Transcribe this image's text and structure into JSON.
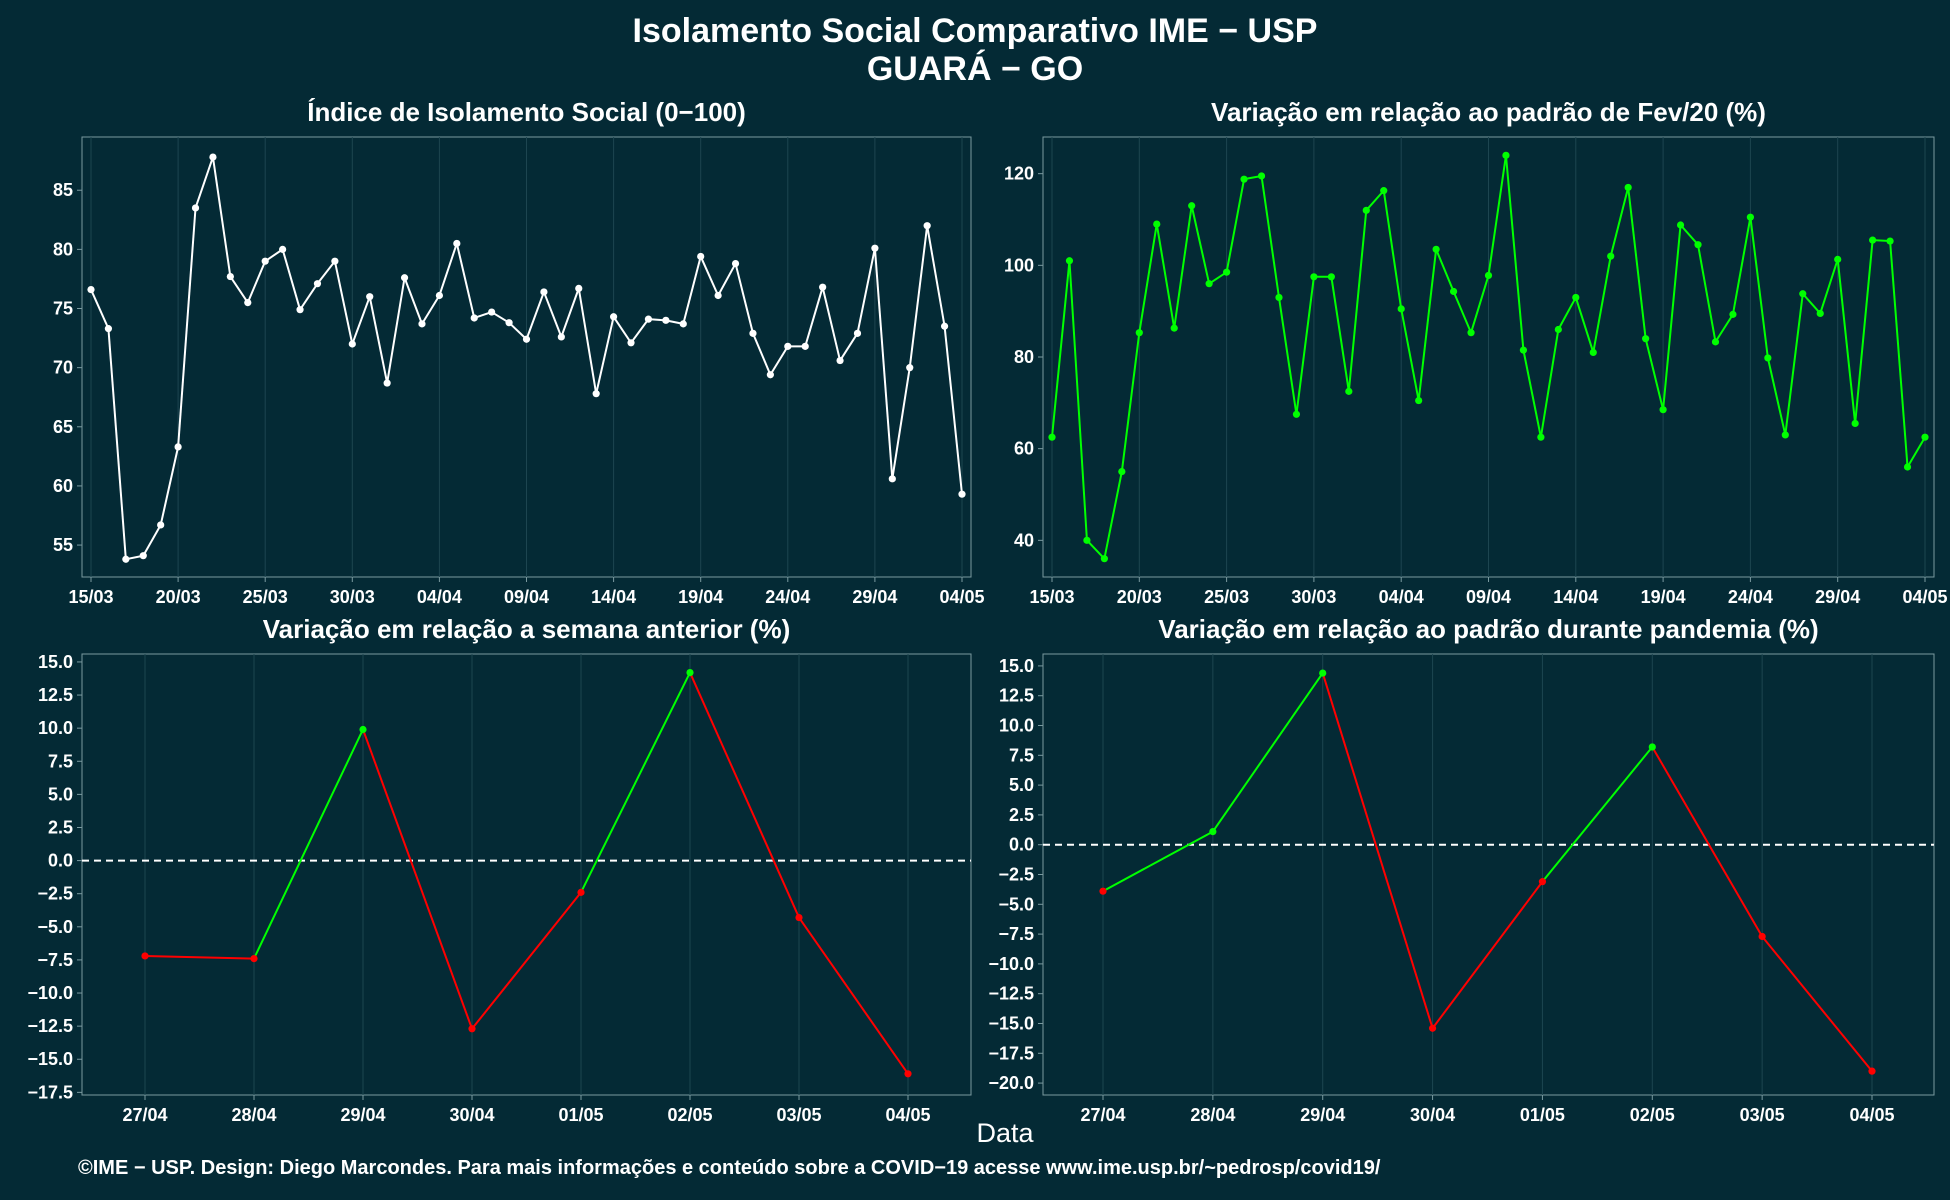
{
  "title": "Isolamento Social Comparativo IME − USP",
  "subtitle": "GUARÁ − GO",
  "x_axis_title": "Data",
  "footer": "©IME − USP. Design: Diego Marcondes. Para mais informações e conteúdo sobre a COVID−19 acesse www.ime.usp.br/~pedrosp/covid19/",
  "colors": {
    "background": "#042a35",
    "white": "#ffffff",
    "green": "#00ff00",
    "red": "#ff0000",
    "grid": "#1d4550",
    "axis": "#7a9aa0"
  },
  "chart_data": [
    {
      "id": "p1",
      "type": "line",
      "title": "Índice de Isolamento Social (0−100)",
      "color": "#ffffff",
      "ylim": [
        52.3,
        89.5
      ],
      "yticks": [
        55,
        60,
        65,
        70,
        75,
        80,
        85
      ],
      "xticks": [
        "15/03",
        "20/03",
        "25/03",
        "30/03",
        "04/04",
        "09/04",
        "14/04",
        "19/04",
        "24/04",
        "29/04",
        "04/05"
      ],
      "x": [
        "15/03",
        "16/03",
        "17/03",
        "18/03",
        "19/03",
        "20/03",
        "21/03",
        "22/03",
        "23/03",
        "24/03",
        "25/03",
        "26/03",
        "27/03",
        "28/03",
        "29/03",
        "30/03",
        "31/03",
        "01/04",
        "02/04",
        "03/04",
        "04/04",
        "05/04",
        "06/04",
        "07/04",
        "08/04",
        "09/04",
        "10/04",
        "11/04",
        "12/04",
        "13/04",
        "14/04",
        "15/04",
        "16/04",
        "17/04",
        "18/04",
        "19/04",
        "20/04",
        "21/04",
        "22/04",
        "23/04",
        "24/04",
        "25/04",
        "26/04",
        "27/04",
        "28/04",
        "29/04",
        "30/04",
        "01/05",
        "02/05",
        "03/05",
        "04/05"
      ],
      "values": [
        76.6,
        73.3,
        53.8,
        54.1,
        56.7,
        63.3,
        83.5,
        87.8,
        77.7,
        75.5,
        79.0,
        80.0,
        74.9,
        77.1,
        79.0,
        72.0,
        76.0,
        68.7,
        77.6,
        73.7,
        76.1,
        80.5,
        74.2,
        74.7,
        73.8,
        72.4,
        76.4,
        72.6,
        76.7,
        67.8,
        74.3,
        72.1,
        74.1,
        74.0,
        73.7,
        79.4,
        76.1,
        78.8,
        72.9,
        69.4,
        71.8,
        71.8,
        76.8,
        70.6,
        72.9,
        80.1,
        60.6,
        70.0,
        82.0,
        73.5,
        59.3
      ]
    },
    {
      "id": "p2",
      "type": "line",
      "title": "Variação em relação ao padrão de Fev/20 (%)",
      "color": "#00ff00",
      "ylim": [
        32,
        128
      ],
      "yticks": [
        40,
        60,
        80,
        100,
        120
      ],
      "xticks": [
        "15/03",
        "20/03",
        "25/03",
        "30/03",
        "04/04",
        "09/04",
        "14/04",
        "19/04",
        "24/04",
        "29/04",
        "04/05"
      ],
      "x": [
        "15/03",
        "16/03",
        "17/03",
        "18/03",
        "19/03",
        "20/03",
        "21/03",
        "22/03",
        "23/03",
        "24/03",
        "25/03",
        "26/03",
        "27/03",
        "28/03",
        "29/03",
        "30/03",
        "31/03",
        "01/04",
        "02/04",
        "03/04",
        "04/04",
        "05/04",
        "06/04",
        "07/04",
        "08/04",
        "09/04",
        "10/04",
        "11/04",
        "12/04",
        "13/04",
        "14/04",
        "15/04",
        "16/04",
        "17/04",
        "18/04",
        "19/04",
        "20/04",
        "21/04",
        "22/04",
        "23/04",
        "24/04",
        "25/04",
        "26/04",
        "27/04",
        "28/04",
        "29/04",
        "30/04",
        "01/05",
        "02/05",
        "03/05",
        "04/05"
      ],
      "values": [
        62.5,
        101.0,
        40.0,
        36.0,
        55.0,
        85.3,
        109.0,
        86.3,
        113.0,
        96.0,
        98.5,
        118.8,
        119.5,
        93.0,
        67.5,
        97.5,
        97.5,
        72.5,
        112.0,
        116.3,
        90.5,
        70.5,
        103.5,
        94.3,
        85.3,
        97.8,
        124.0,
        81.5,
        62.5,
        86.0,
        93.0,
        81.0,
        102.0,
        117.0,
        84.0,
        68.5,
        108.8,
        104.5,
        83.3,
        89.3,
        110.5,
        79.8,
        63.0,
        93.8,
        89.5,
        101.3,
        65.5,
        105.5,
        105.3,
        56.0,
        62.5
      ]
    },
    {
      "id": "p3",
      "type": "line",
      "title": "Variação em relação a semana anterior (%)",
      "ylim": [
        -17.7,
        15.6
      ],
      "yticks": [
        -17.5,
        -15.0,
        -12.5,
        -10.0,
        -7.5,
        -5.0,
        -2.5,
        0.0,
        2.5,
        5.0,
        7.5,
        10.0,
        12.5,
        15.0
      ],
      "reference_line": 0,
      "categories": [
        "27/04",
        "28/04",
        "29/04",
        "30/04",
        "01/05",
        "02/05",
        "03/05",
        "04/05"
      ],
      "values": [
        -7.2,
        -7.4,
        9.9,
        -12.7,
        -2.4,
        14.2,
        -4.3,
        -16.1
      ],
      "segment_colors": [
        "#ff0000",
        "#00ff00",
        "#ff0000",
        "#ff0000",
        "#00ff00",
        "#ff0000",
        "#ff0000"
      ],
      "point_colors": [
        "#ff0000",
        "#ff0000",
        "#00ff00",
        "#ff0000",
        "#ff0000",
        "#00ff00",
        "#ff0000",
        "#ff0000"
      ]
    },
    {
      "id": "p4",
      "type": "line",
      "title": "Variação em relação ao padrão durante pandemia (%)",
      "ylim": [
        -21,
        16
      ],
      "yticks": [
        -20.0,
        -17.5,
        -15.0,
        -12.5,
        -10.0,
        -7.5,
        -5.0,
        -2.5,
        0.0,
        2.5,
        5.0,
        7.5,
        10.0,
        12.5,
        15.0
      ],
      "reference_line": 0,
      "categories": [
        "27/04",
        "28/04",
        "29/04",
        "30/04",
        "01/05",
        "02/05",
        "03/05",
        "04/05"
      ],
      "values": [
        -3.9,
        1.1,
        14.4,
        -15.4,
        -3.1,
        8.2,
        -7.7,
        -19.0
      ],
      "segment_colors": [
        "#00ff00",
        "#00ff00",
        "#ff0000",
        "#ff0000",
        "#00ff00",
        "#ff0000",
        "#ff0000"
      ],
      "point_colors": [
        "#ff0000",
        "#00ff00",
        "#00ff00",
        "#ff0000",
        "#ff0000",
        "#00ff00",
        "#ff0000",
        "#ff0000"
      ]
    }
  ]
}
